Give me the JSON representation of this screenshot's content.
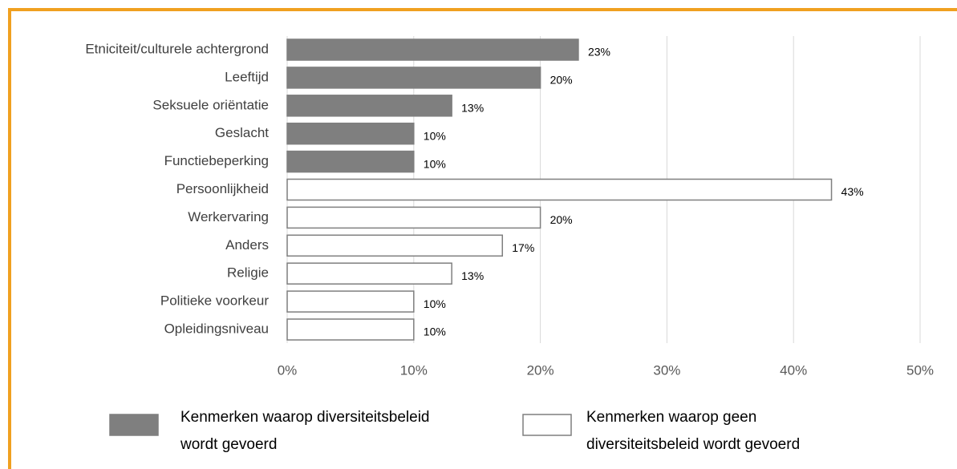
{
  "chart_data": {
    "type": "bar",
    "orientation": "horizontal",
    "categories": [
      "Etniciteit/culturele achtergrond",
      "Leeftijd",
      "Seksuele oriëntatie",
      "Geslacht",
      "Functiebeperking",
      "Persoonlijkheid",
      "Werkervaring",
      "Anders",
      "Religie",
      "Politieke voorkeur",
      "Opleidingsniveau"
    ],
    "series": [
      {
        "name": "Kenmerken waarop diversiteitsbeleid wordt gevoerd",
        "color": "#7f7f7f",
        "values": [
          23,
          20,
          13,
          10,
          10,
          null,
          null,
          null,
          null,
          null,
          null
        ],
        "value_labels": [
          "23%",
          "20%",
          "13%",
          "10%",
          "10%",
          null,
          null,
          null,
          null,
          null,
          null
        ]
      },
      {
        "name": "Kenmerken waarop geen diversiteitsbeleid wordt gevoerd",
        "color": "#ffffff",
        "values": [
          null,
          null,
          null,
          null,
          null,
          43,
          20,
          17,
          13,
          10,
          10
        ],
        "value_labels": [
          null,
          null,
          null,
          null,
          null,
          "43%",
          "20%",
          "17%",
          "13%",
          "10%",
          "10%"
        ]
      }
    ],
    "xlim": [
      0,
      50
    ],
    "xticks": [
      {
        "value": 0,
        "label": "0%"
      },
      {
        "value": 10,
        "label": "10%"
      },
      {
        "value": 20,
        "label": "20%"
      },
      {
        "value": 30,
        "label": "30%"
      },
      {
        "value": 40,
        "label": "40%"
      },
      {
        "value": 50,
        "label": "50%"
      }
    ],
    "grid": true
  }
}
